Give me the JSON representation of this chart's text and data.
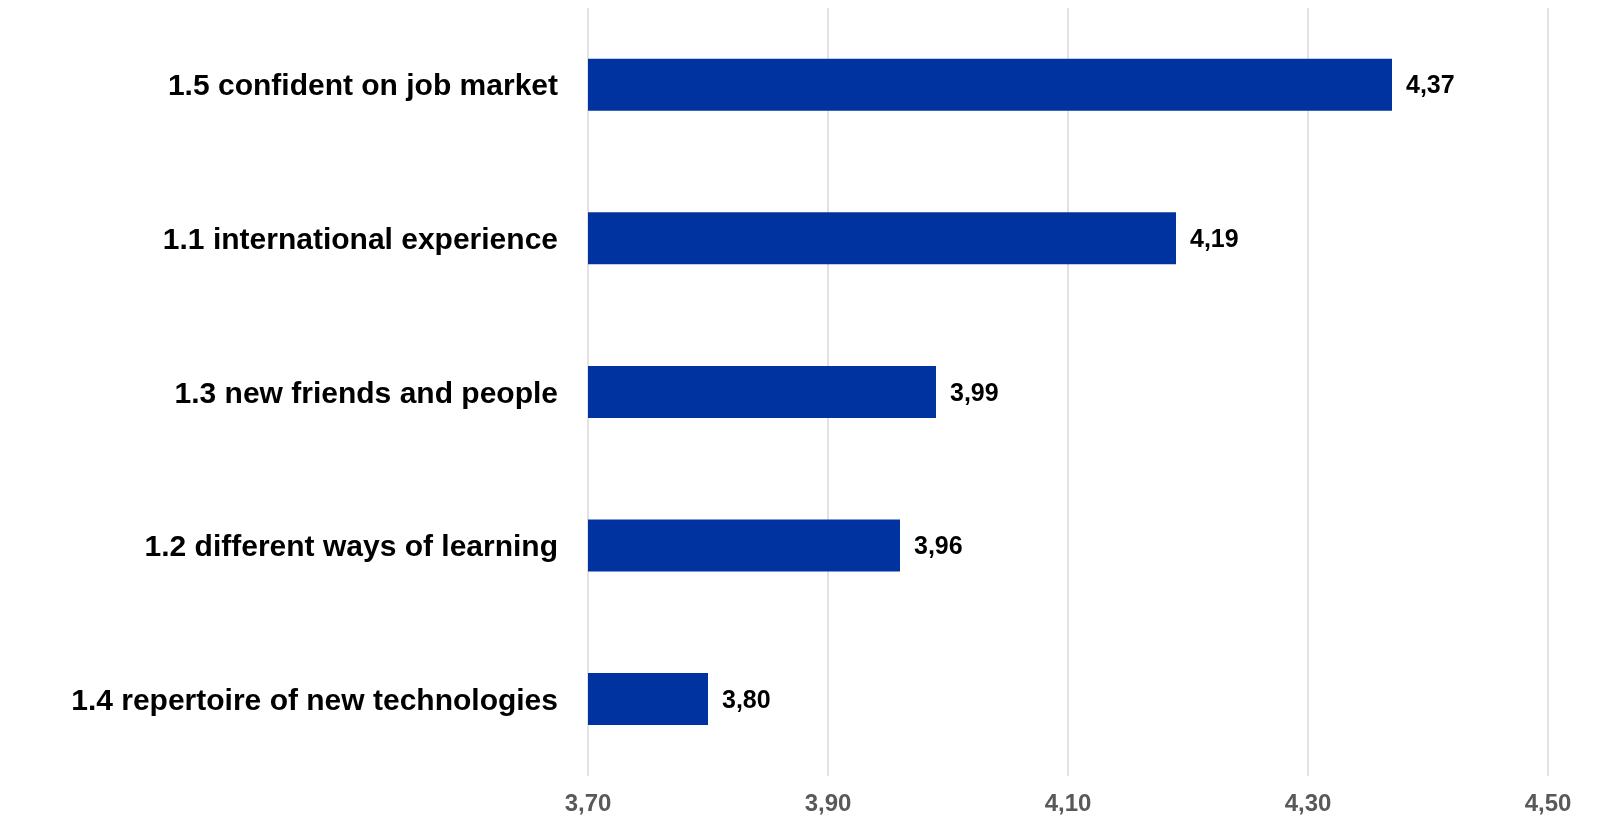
{
  "chart_data": {
    "type": "bar",
    "orientation": "horizontal",
    "categories": [
      "1.5 confident on job market",
      "1.1 international experience",
      "1.3 new friends and people",
      "1.2 different ways of learning",
      "1.4 repertoire of new technologies"
    ],
    "values": [
      4.37,
      4.19,
      3.99,
      3.96,
      3.8
    ],
    "value_labels": [
      "4,37",
      "4,19",
      "3,99",
      "3,96",
      "3,80"
    ],
    "color": "#0033a0",
    "xlim": [
      3.7,
      4.5
    ],
    "xticks": [
      {
        "value": 3.7,
        "label": "3,70"
      },
      {
        "value": 3.9,
        "label": "3,90"
      },
      {
        "value": 4.1,
        "label": "4,10"
      },
      {
        "value": 4.3,
        "label": "4,30"
      },
      {
        "value": 4.5,
        "label": "4,50"
      }
    ],
    "grid": "x"
  }
}
